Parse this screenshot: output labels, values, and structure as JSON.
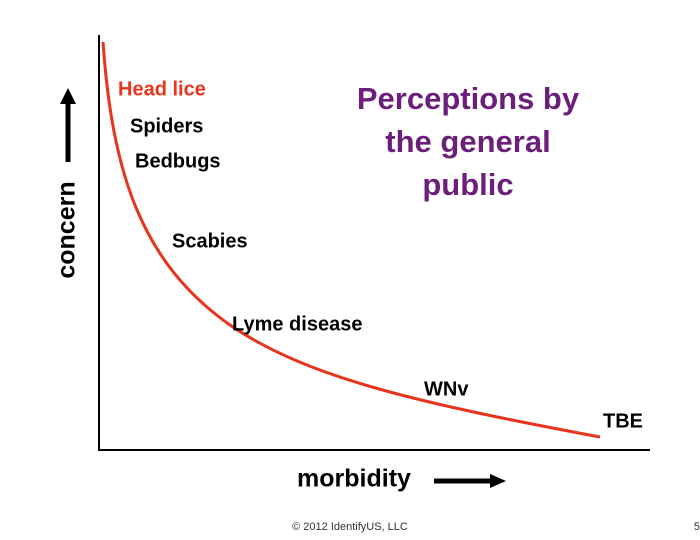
{
  "title": {
    "lines": [
      "Perceptions by",
      "the general",
      "public"
    ]
  },
  "axes": {
    "y_label": "concern",
    "x_label": "morbidity"
  },
  "curve_labels": [
    {
      "text": "Head lice"
    },
    {
      "text": "Spiders"
    },
    {
      "text": "Bedbugs"
    },
    {
      "text": "Scabies"
    },
    {
      "text": "Lyme disease"
    },
    {
      "text": "WNv"
    },
    {
      "text": "TBE"
    }
  ],
  "footer": {
    "copyright": "© 2012 IdentifyUS, LLC",
    "page_number": "5"
  }
}
